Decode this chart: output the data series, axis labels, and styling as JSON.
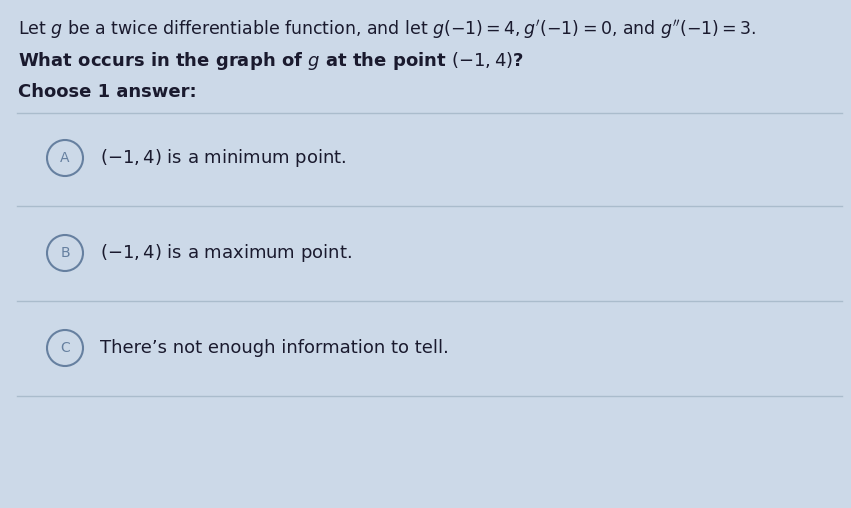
{
  "background_color": "#ccd9e8",
  "top_bg_color": "#ffffff",
  "title_line1": "Let $g$ be a twice differentiable function, and let $g(-1) = 4, g'(-1) = 0$, and $g''(-1) = 3$.",
  "question": "What occurs in the graph of $g$ at the point $(-1, 4)$?",
  "choose_text": "Choose 1 answer:",
  "options": [
    {
      "label": "A",
      "text": "$(-1, 4)$ is a minimum point."
    },
    {
      "label": "B",
      "text": "$(-1, 4)$ is a maximum point."
    },
    {
      "label": "C",
      "text": "There’s not enough information to tell."
    }
  ],
  "circle_edge_color": "#6680a0",
  "circle_face_color": "#ccd9e8",
  "text_color": "#1a1a2e",
  "separator_color": "#aabccc",
  "title_fontsize": 12.5,
  "question_fontsize": 13,
  "choose_fontsize": 13,
  "option_fontsize": 13,
  "label_fontsize": 10
}
